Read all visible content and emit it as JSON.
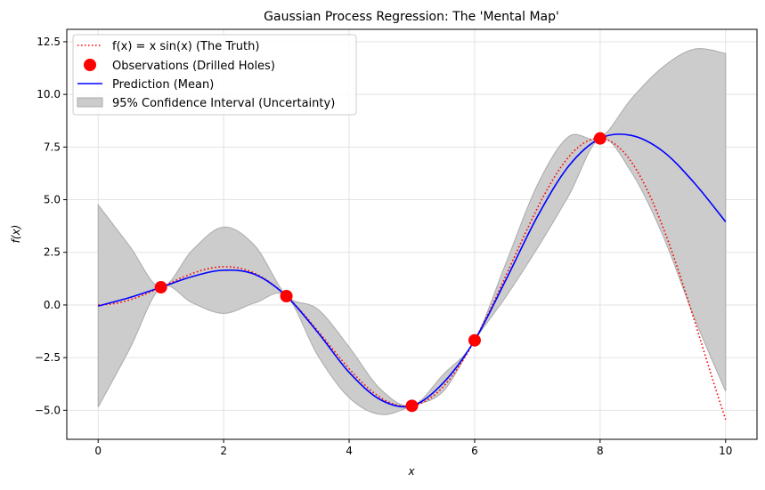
{
  "chart_data": {
    "type": "line",
    "title": "Gaussian Process Regression: The 'Mental Map'",
    "xlabel": "x",
    "ylabel": "f(x)",
    "xlim": [
      -0.5,
      10.5
    ],
    "ylim": [
      -6.38,
      13.09
    ],
    "grid": true,
    "legend_position": "top-left",
    "x_ticks": [
      0,
      2,
      4,
      6,
      8,
      10
    ],
    "x_tick_labels": [
      "0",
      "2",
      "4",
      "6",
      "8",
      "10"
    ],
    "y_ticks": [
      -5,
      -2.5,
      0,
      2.5,
      5,
      7.5,
      10,
      12.5
    ],
    "y_tick_labels": [
      "−5.0",
      "−2.5",
      "0.0",
      "2.5",
      "5.0",
      "7.5",
      "10.0",
      "12.5"
    ],
    "legend": [
      {
        "label": "f(x) = x sin(x) (The Truth)",
        "kind": "dotted-line",
        "color": "#ff0000"
      },
      {
        "label": "Observations (Drilled Holes)",
        "kind": "marker",
        "color": "#ff0000"
      },
      {
        "label": "Prediction (Mean)",
        "kind": "line",
        "color": "#0000ff"
      },
      {
        "label": "95% Confidence Interval (Uncertainty)",
        "kind": "patch",
        "color": "#cccccc"
      }
    ],
    "truth": {
      "name": "f(x) = x sin(x)",
      "x_range": [
        0,
        10
      ]
    },
    "observations": {
      "x": [
        1,
        3,
        5,
        6,
        8
      ],
      "y": [
        0.84,
        0.42,
        -4.79,
        -1.68,
        7.91
      ]
    },
    "grid_x": [
      0,
      0.5,
      1,
      1.5,
      2,
      2.5,
      3,
      3.5,
      4,
      4.5,
      5,
      5.5,
      6,
      6.5,
      7,
      7.5,
      8,
      8.5,
      9,
      9.5,
      10
    ],
    "mean": [
      -0.05,
      0.35,
      0.84,
      1.35,
      1.65,
      1.45,
      0.42,
      -1.3,
      -3.2,
      -4.5,
      -4.79,
      -3.7,
      -1.68,
      1.2,
      4.2,
      6.6,
      7.91,
      8.05,
      7.3,
      5.8,
      3.95
    ],
    "upper": [
      4.75,
      2.8,
      0.84,
      2.6,
      3.7,
      2.8,
      0.45,
      -0.2,
      -2.0,
      -4.0,
      -4.79,
      -3.3,
      -1.68,
      2.0,
      5.7,
      8.0,
      7.91,
      9.8,
      11.3,
      12.15,
      11.95
    ],
    "lower": [
      -4.85,
      -2.1,
      0.84,
      0.1,
      -0.4,
      0.1,
      0.42,
      -2.4,
      -4.4,
      -5.2,
      -4.79,
      -4.1,
      -1.68,
      0.4,
      2.7,
      5.2,
      7.91,
      6.3,
      3.3,
      -0.6,
      -4.1
    ],
    "colors": {
      "truth": "#ff0000",
      "mean": "#0000ff",
      "band": "#cccccc",
      "band_edge": "#aaaaaa",
      "obs": "#ff0000"
    }
  }
}
